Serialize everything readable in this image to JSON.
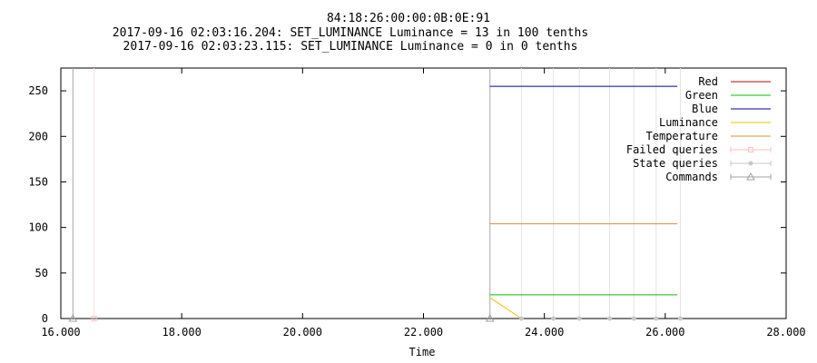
{
  "chart_data": {
    "type": "line",
    "title": "84:18:26:00:00:0B:0E:91",
    "subtitle": [
      "2017-09-16 02:03:16.204: SET_LUMINANCE Luminance = 13 in 100 tenths",
      "2017-09-16 02:03:23.115: SET_LUMINANCE Luminance = 0 in 0 tenths"
    ],
    "xlabel": "Time",
    "ylabel": "",
    "xlim": [
      16.0,
      28.0
    ],
    "ylim": [
      0,
      275
    ],
    "x_ticks": [
      "16.000",
      "18.000",
      "20.000",
      "22.000",
      "24.000",
      "26.000",
      "28.000"
    ],
    "y_ticks": [
      "0",
      "50",
      "100",
      "150",
      "200",
      "250"
    ],
    "legend_position": "top-right",
    "series": [
      {
        "name": "Red",
        "color": "#c00000",
        "points": []
      },
      {
        "name": "Green",
        "color": "#00c000",
        "points": [
          [
            23.1,
            26
          ],
          [
            26.2,
            26
          ]
        ]
      },
      {
        "name": "Blue",
        "color": "#0000a0",
        "points": [
          [
            23.1,
            255
          ],
          [
            26.2,
            255
          ]
        ]
      },
      {
        "name": "Luminance",
        "color": "#f0c000",
        "points": [
          [
            23.1,
            23
          ],
          [
            23.62,
            0
          ]
        ]
      },
      {
        "name": "Temperature",
        "color": "#e09030",
        "points": [
          [
            23.1,
            104
          ],
          [
            26.2,
            104
          ]
        ]
      },
      {
        "name": "Failed queries",
        "color": "#ffc0c0",
        "marker": "square",
        "points": [
          [
            16.55,
            0
          ]
        ]
      },
      {
        "name": "State queries",
        "color": "#c8c8c8",
        "marker": "circle",
        "points": [
          [
            23.62,
            0
          ],
          [
            24.15,
            0
          ],
          [
            24.58,
            0
          ],
          [
            25.08,
            0
          ],
          [
            25.48,
            0
          ],
          [
            25.85,
            0
          ],
          [
            26.25,
            0
          ]
        ]
      },
      {
        "name": "Commands",
        "color": "#a0a0a0",
        "marker": "triangle",
        "points": [
          [
            16.2,
            0
          ],
          [
            23.1,
            0
          ]
        ]
      }
    ]
  }
}
